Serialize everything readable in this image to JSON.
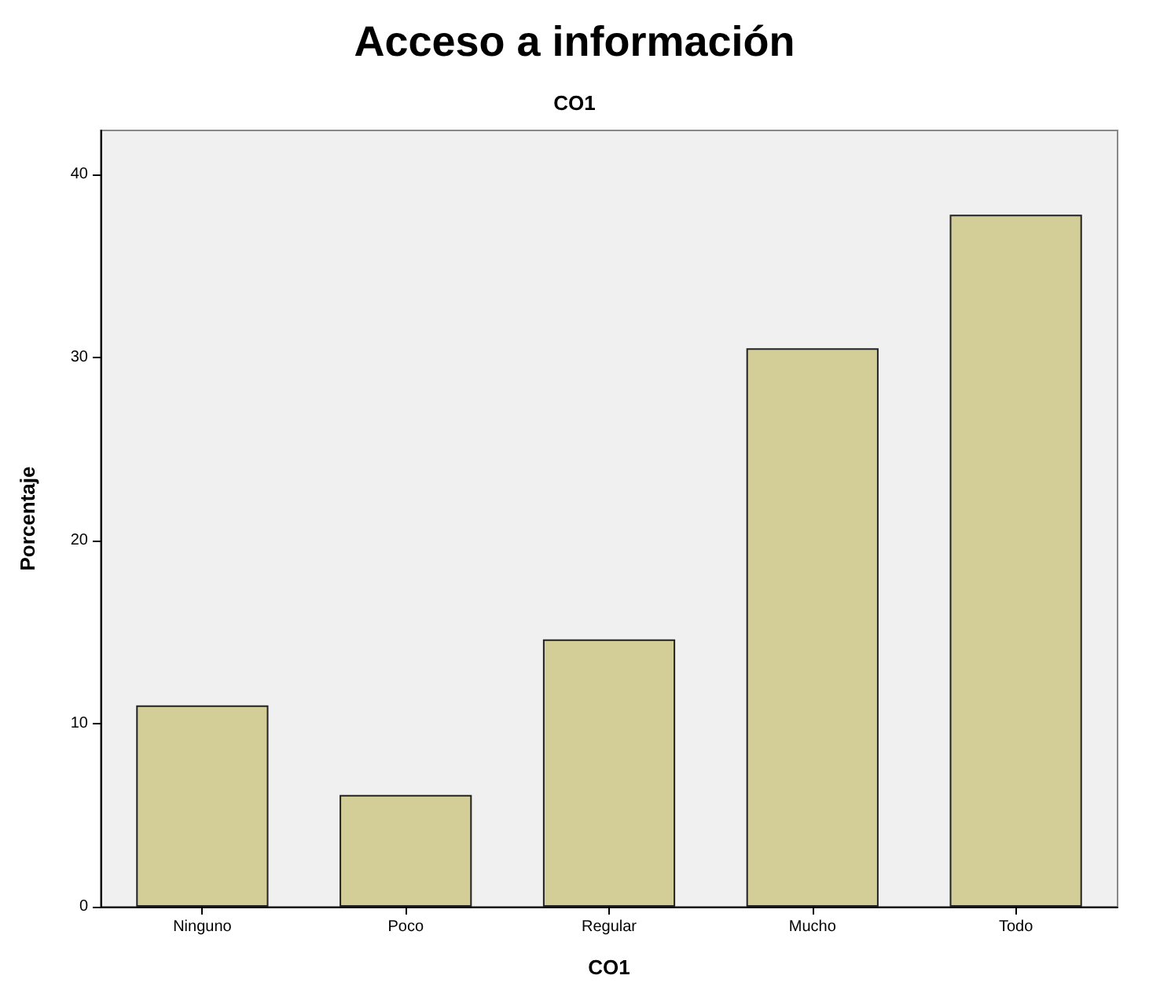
{
  "chart_data": {
    "type": "bar",
    "title": "Acceso a información",
    "subtitle": "CO1",
    "xlabel": "CO1",
    "ylabel": "Porcentaje",
    "categories": [
      "Ninguno",
      "Poco",
      "Regular",
      "Mucho",
      "Todo"
    ],
    "values": [
      11.0,
      6.1,
      14.6,
      30.5,
      37.8
    ],
    "color": "#d3ce97",
    "ylim": [
      0,
      42.4
    ],
    "yticks": [
      0,
      10,
      20,
      30,
      40
    ],
    "grid": false
  }
}
